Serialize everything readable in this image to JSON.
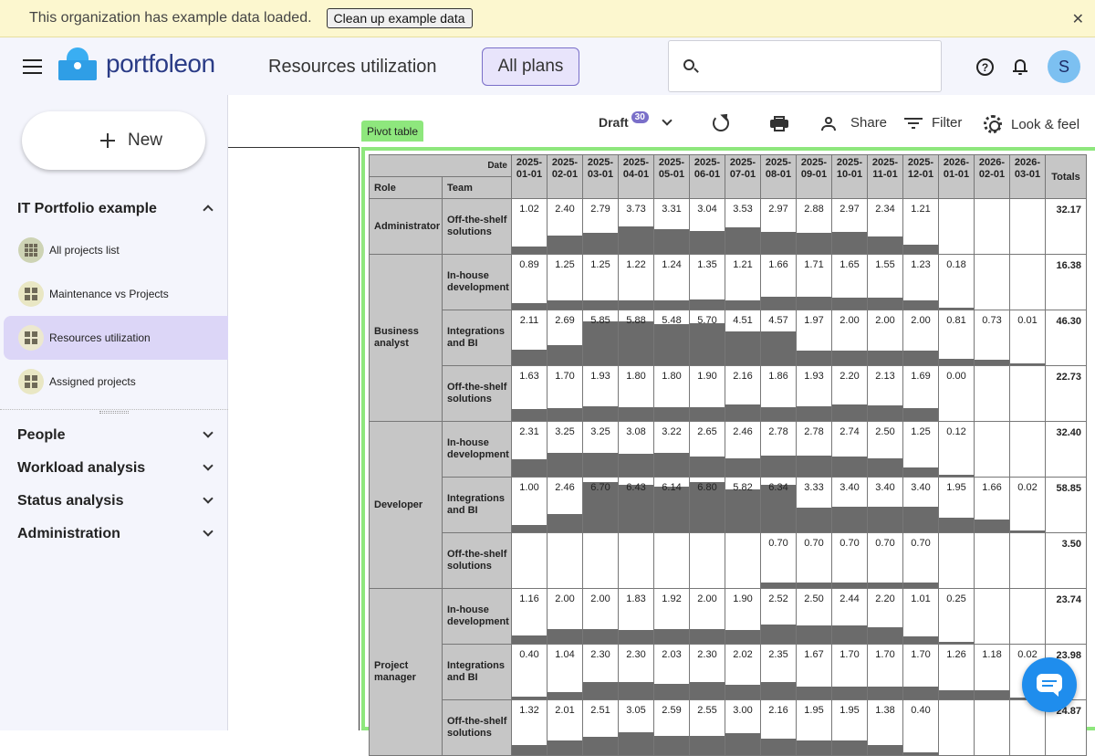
{
  "banner": {
    "message": "This organization has example data loaded.",
    "cleanup_label": "Clean up example data"
  },
  "header": {
    "logo_text": "portfoleon",
    "page_title": "Resources utilization",
    "plans_label": "All plans",
    "search_placeholder": "",
    "avatar_initial": "S"
  },
  "sidebar": {
    "new_label": "New",
    "portfolio_title": "IT Portfolio example",
    "items": [
      {
        "label": "All projects list",
        "icon": "list-grid-icon"
      },
      {
        "label": "Maintenance vs Projects",
        "icon": "pivot-grid-icon"
      },
      {
        "label": "Resources utilization",
        "icon": "pivot-grid-icon",
        "active": true
      },
      {
        "label": "Assigned projects",
        "icon": "pivot-grid-icon"
      }
    ],
    "sections": [
      "People",
      "Workload analysis",
      "Status analysis",
      "Administration"
    ]
  },
  "toolbar": {
    "pivot_tab": "Pivot table",
    "draft_label": "Draft",
    "draft_count": "30",
    "share_label": "Share",
    "filter_label": "Filter",
    "look_label": "Look & feel"
  },
  "pivot": {
    "date_header": "Date",
    "role_header": "Role",
    "team_header": "Team",
    "totals_header": "Totals",
    "accent": "#8ee77d",
    "dates": [
      "2025-01-01",
      "2025-02-01",
      "2025-03-01",
      "2025-04-01",
      "2025-05-01",
      "2025-06-01",
      "2025-07-01",
      "2025-08-01",
      "2025-09-01",
      "2025-10-01",
      "2025-11-01",
      "2025-12-01",
      "2026-01-01",
      "2026-02-01",
      "2026-03-01"
    ],
    "scale_max": 7.0,
    "rows": [
      {
        "role": "Administrator",
        "team": "Off-the-shelf solutions",
        "values": [
          "1.02",
          "2.40",
          "2.79",
          "3.73",
          "3.31",
          "3.04",
          "3.53",
          "2.97",
          "2.88",
          "2.97",
          "2.34",
          "1.21",
          "",
          "",
          ""
        ],
        "total": "32.17"
      },
      {
        "role": "Business analyst",
        "team": "In-house development",
        "values": [
          "0.89",
          "1.25",
          "1.25",
          "1.22",
          "1.24",
          "1.35",
          "1.21",
          "1.66",
          "1.71",
          "1.65",
          "1.55",
          "1.23",
          "0.18",
          "",
          ""
        ],
        "total": "16.38"
      },
      {
        "role": "",
        "team": "Integrations and BI",
        "values": [
          "2.11",
          "2.69",
          "5.85",
          "5.88",
          "5.48",
          "5.70",
          "4.51",
          "4.57",
          "1.97",
          "2.00",
          "2.00",
          "2.00",
          "0.81",
          "0.73",
          "0.01"
        ],
        "total": "46.30"
      },
      {
        "role": "",
        "team": "Off-the-shelf solutions",
        "values": [
          "1.63",
          "1.70",
          "1.93",
          "1.80",
          "1.80",
          "1.90",
          "2.16",
          "1.86",
          "1.93",
          "2.20",
          "2.13",
          "1.69",
          "0.00",
          "",
          ""
        ],
        "total": "22.73"
      },
      {
        "role": "Developer",
        "team": "In-house development",
        "values": [
          "2.31",
          "3.25",
          "3.25",
          "3.08",
          "3.22",
          "2.65",
          "2.46",
          "2.78",
          "2.78",
          "2.74",
          "2.50",
          "1.25",
          "0.12",
          "",
          ""
        ],
        "total": "32.40"
      },
      {
        "role": "",
        "team": "Integrations and BI",
        "values": [
          "1.00",
          "2.46",
          "6.70",
          "6.43",
          "6.14",
          "6.80",
          "5.82",
          "6.34",
          "3.33",
          "3.40",
          "3.40",
          "3.40",
          "1.95",
          "1.66",
          "0.02"
        ],
        "total": "58.85"
      },
      {
        "role": "",
        "team": "Off-the-shelf solutions",
        "values": [
          "",
          "",
          "",
          "",
          "",
          "",
          "",
          "0.70",
          "0.70",
          "0.70",
          "0.70",
          "0.70",
          "",
          "",
          ""
        ],
        "total": "3.50"
      },
      {
        "role": "Project manager",
        "team": "In-house development",
        "values": [
          "1.16",
          "2.00",
          "2.00",
          "1.83",
          "1.92",
          "2.00",
          "1.90",
          "2.52",
          "2.50",
          "2.44",
          "2.20",
          "1.01",
          "0.25",
          "",
          ""
        ],
        "total": "23.74"
      },
      {
        "role": "",
        "team": "Integrations and BI",
        "values": [
          "0.40",
          "1.04",
          "2.30",
          "2.30",
          "2.03",
          "2.30",
          "2.02",
          "2.35",
          "1.67",
          "1.70",
          "1.70",
          "1.70",
          "1.26",
          "1.18",
          "0.02"
        ],
        "total": "23.98"
      },
      {
        "role": "",
        "team": "Off-the-shelf solutions",
        "values": [
          "1.32",
          "2.01",
          "2.51",
          "3.05",
          "2.59",
          "2.55",
          "3.00",
          "2.16",
          "1.95",
          "1.95",
          "1.38",
          "0.40",
          "",
          "",
          ""
        ],
        "total": "24.87"
      }
    ],
    "role_spans": [
      {
        "role": "Administrator",
        "start": 0,
        "span": 1
      },
      {
        "role": "Business analyst",
        "start": 1,
        "span": 3
      },
      {
        "role": "Developer",
        "start": 4,
        "span": 3
      },
      {
        "role": "Project manager",
        "start": 7,
        "span": 3
      }
    ]
  }
}
